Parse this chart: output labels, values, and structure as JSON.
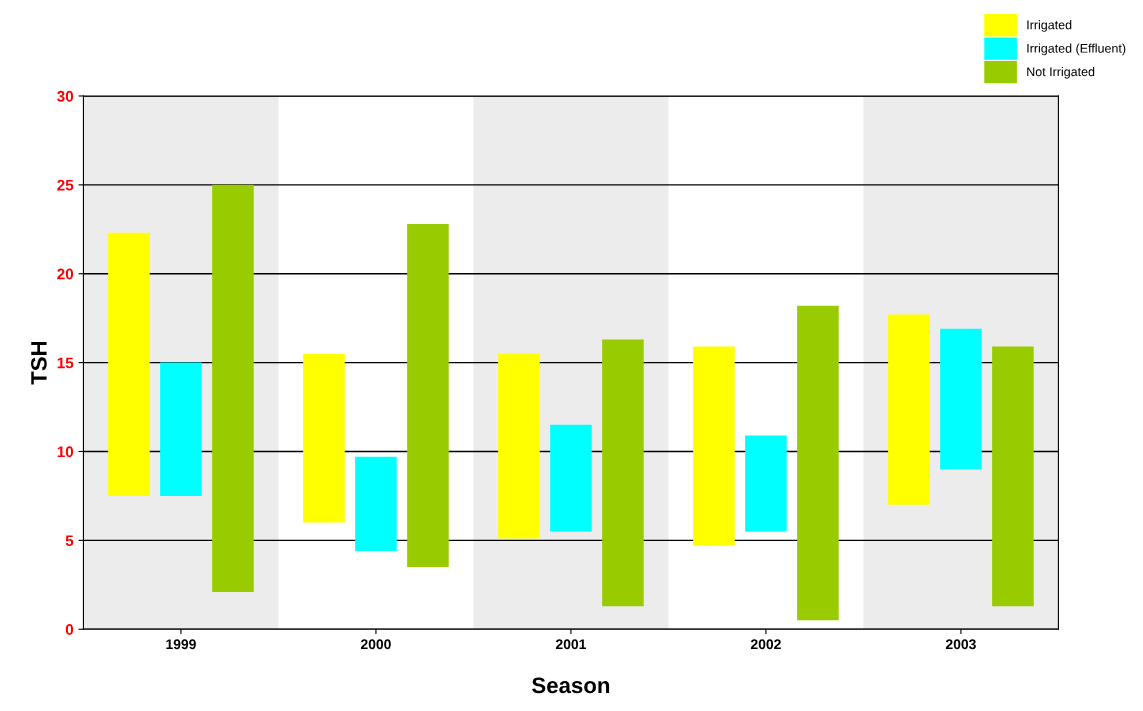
{
  "chart_data": {
    "type": "bar",
    "xlabel": "Season",
    "ylabel": "TSH",
    "categories": [
      "1999",
      "2000",
      "2001",
      "2002",
      "2003"
    ],
    "series": [
      {
        "name": "Irrigated",
        "color": "#ffff00",
        "base": [
          7.5,
          6.0,
          5.1,
          4.7,
          7.0
        ],
        "values": [
          14.8,
          9.5,
          10.4,
          11.2,
          10.7
        ]
      },
      {
        "name": "Irrigated (Effluent)",
        "color": "#00ffff",
        "base": [
          7.5,
          4.4,
          5.5,
          5.5,
          9.0
        ],
        "values": [
          7.5,
          5.3,
          6.0,
          5.4,
          7.9
        ]
      },
      {
        "name": "Not Irrigated",
        "color": "#99cc00",
        "base": [
          2.1,
          3.5,
          1.3,
          0.5,
          1.3
        ],
        "values": [
          22.9,
          19.3,
          15.0,
          17.7,
          14.6
        ]
      }
    ],
    "ylim": [
      0,
      30
    ],
    "yticks": [
      0,
      5,
      10,
      15,
      20,
      25,
      30
    ],
    "grid": "y",
    "legend": "top right",
    "bands": [
      {
        "axis": "x",
        "from": "1999",
        "to": "1999",
        "color": "#ececec"
      },
      {
        "axis": "x",
        "from": "2001",
        "to": "2001",
        "color": "#ececec"
      },
      {
        "axis": "x",
        "from": "2003",
        "to": "2003",
        "color": "#ececec"
      }
    ]
  }
}
